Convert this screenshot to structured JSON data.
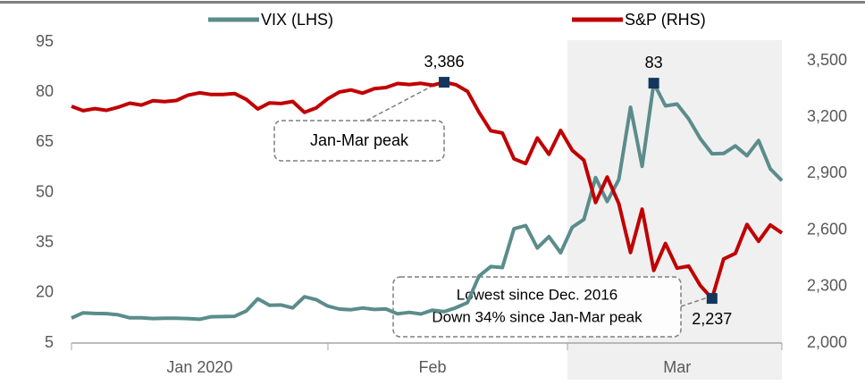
{
  "chart_data": {
    "type": "line",
    "categories": [
      null,
      null,
      null,
      null,
      null,
      null,
      null,
      null,
      null,
      null,
      null,
      "Jan 2020",
      null,
      null,
      null,
      null,
      null,
      null,
      null,
      null,
      null,
      null,
      null,
      null,
      null,
      null,
      null,
      null,
      null,
      null,
      null,
      "Feb",
      null,
      null,
      null,
      null,
      null,
      null,
      null,
      null,
      null,
      null,
      null,
      null,
      null,
      null,
      null,
      null,
      null,
      null,
      null,
      null,
      "Mar",
      null,
      null,
      null,
      null,
      null,
      null,
      null,
      null,
      null
    ],
    "series": [
      {
        "name": "VIX (LHS)",
        "color": "#5b8c8c",
        "axis": "y",
        "values": [
          12.47,
          14.02,
          13.85,
          13.79,
          13.45,
          12.54,
          12.56,
          12.32,
          12.39,
          12.42,
          12.32,
          12.1,
          12.85,
          12.91,
          12.98,
          14.56,
          18.23,
          16.28,
          16.39,
          15.49,
          18.84,
          17.97,
          16.05,
          15.15,
          14.96,
          15.47,
          15.04,
          15.18,
          13.74,
          14.15,
          13.68,
          14.83,
          14.38,
          15.56,
          17.08,
          25.03,
          27.85,
          27.56,
          39.16,
          40.11,
          33.42,
          36.82,
          31.99,
          39.62,
          41.94,
          54.46,
          47.3,
          53.9,
          75.47,
          57.83,
          82.69,
          75.91,
          76.45,
          72,
          66.04,
          61.59,
          61.67,
          63.95,
          61,
          65.54,
          57.08,
          53.54
        ],
        "value_labels": [
          null,
          null,
          null,
          null,
          null,
          null,
          null,
          null,
          null,
          null,
          null,
          null,
          null,
          null,
          null,
          null,
          null,
          null,
          null,
          null,
          null,
          null,
          null,
          null,
          null,
          null,
          null,
          null,
          null,
          null,
          null,
          null,
          null,
          null,
          null,
          null,
          null,
          null,
          null,
          null,
          null,
          null,
          null,
          null,
          null,
          null,
          null,
          null,
          null,
          null,
          "83",
          null,
          null,
          null,
          null,
          null,
          null,
          null,
          null,
          null,
          null,
          null
        ]
      },
      {
        "name": "S&P (RHS)",
        "color": "#c00000",
        "axis": "y2",
        "values": [
          3258,
          3235,
          3246,
          3237,
          3253,
          3275,
          3265,
          3288,
          3283,
          3289,
          3317,
          3330,
          3321,
          3321,
          3326,
          3295,
          3244,
          3276,
          3273,
          3284,
          3226,
          3249,
          3298,
          3334,
          3345,
          3328,
          3352,
          3358,
          3379,
          3374,
          3380,
          3370,
          3386,
          3373,
          3338,
          3226,
          3128,
          3116,
          2979,
          2954,
          3090,
          3003,
          3130,
          3024,
          2972,
          2747,
          2882,
          2741,
          2481,
          2711,
          2386,
          2529,
          2398,
          2409,
          2305,
          2237,
          2447,
          2476,
          2630,
          2541,
          2627,
          2585
        ],
        "value_labels": [
          null,
          null,
          null,
          null,
          null,
          null,
          null,
          null,
          null,
          null,
          null,
          null,
          null,
          null,
          null,
          null,
          null,
          null,
          null,
          null,
          null,
          null,
          null,
          null,
          null,
          null,
          null,
          null,
          null,
          null,
          null,
          null,
          "3,386",
          null,
          null,
          null,
          null,
          null,
          null,
          null,
          null,
          null,
          null,
          null,
          null,
          null,
          null,
          null,
          null,
          null,
          null,
          null,
          null,
          null,
          null,
          "2,237",
          null,
          null,
          null,
          null,
          null,
          null
        ]
      }
    ],
    "ylim": [
      5,
      95
    ],
    "yticks": [
      5,
      20,
      35,
      50,
      65,
      80,
      95
    ],
    "y2lim": [
      2000,
      3600
    ],
    "y2ticks": [
      {
        "value": 2000,
        "label": "2,000"
      },
      {
        "value": 2300,
        "label": "2,300"
      },
      {
        "value": 2600,
        "label": "2,600"
      },
      {
        "value": 2900,
        "label": "2,900"
      },
      {
        "value": 3200,
        "label": "3,200"
      },
      {
        "value": 3500,
        "label": "3,500"
      }
    ],
    "annotations": [
      "Jan-Mar peak",
      "Lowest since Dec. 2016",
      "Down 34% since Jan-Mar peak"
    ],
    "marker_color": "#14365c"
  }
}
